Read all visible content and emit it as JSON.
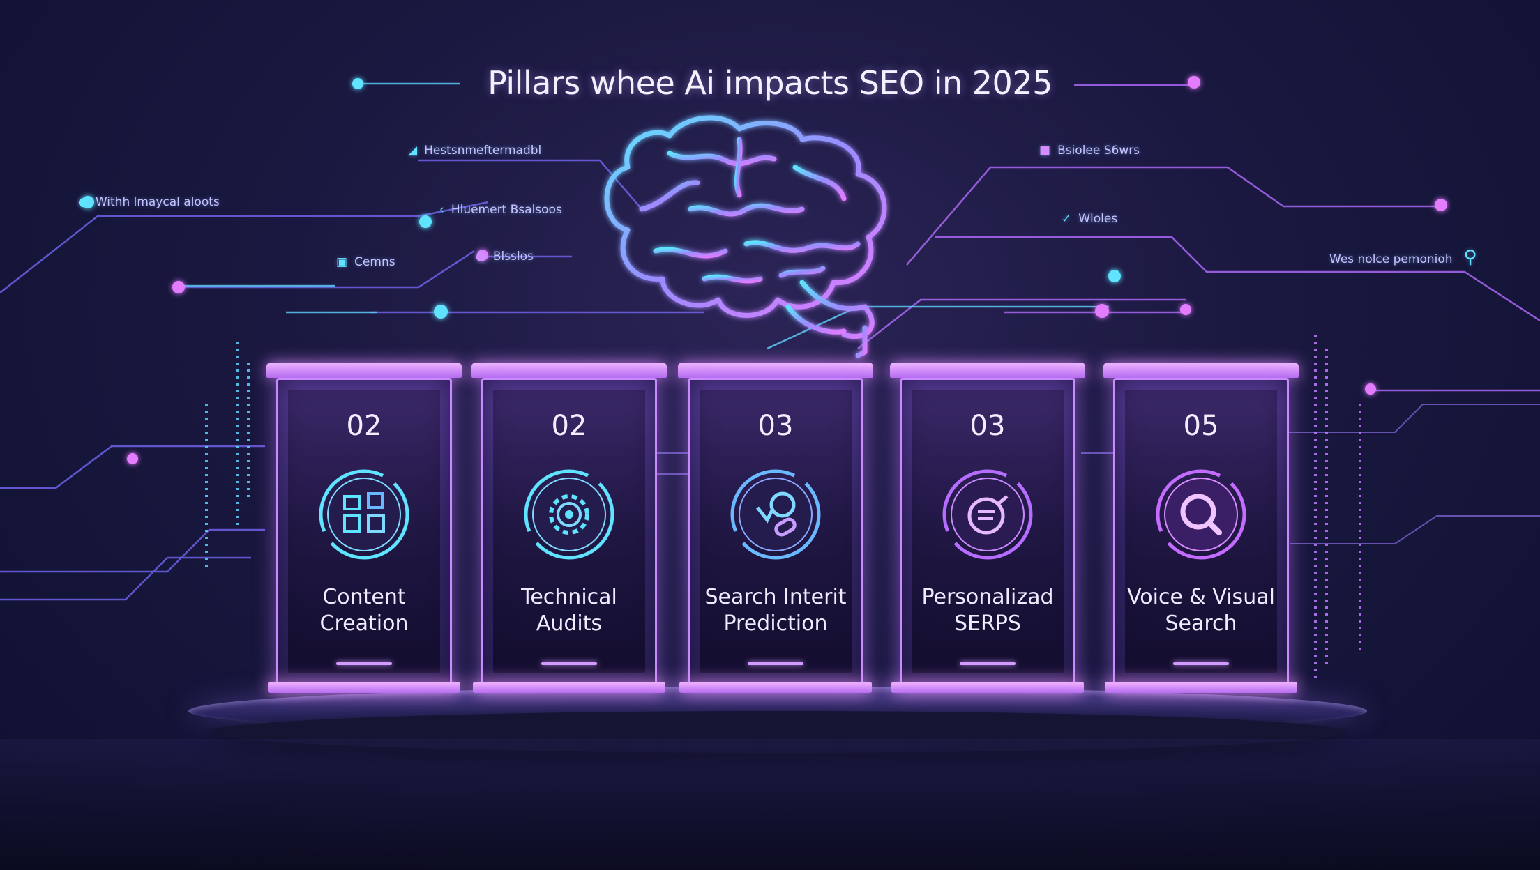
{
  "title": "Pillars whee Ai impacts SEO in 2025",
  "tags": [
    {
      "text": "Hestsnmeftermadbl",
      "icon": "pin-icon"
    },
    {
      "text": "Withh lmaycal aloots",
      "icon": "dot-icon"
    },
    {
      "text": "Hluemert Bsalsoos",
      "icon": "chevron-left-icon"
    },
    {
      "text": "Cemns",
      "icon": "frame-icon"
    },
    {
      "text": "Blsslos",
      "icon": "dot-icon"
    },
    {
      "text": "Bsiolee S6wrs",
      "icon": "square-icon"
    },
    {
      "text": "Wloles",
      "icon": "heart-check-icon"
    },
    {
      "text": "Wes nolce pemonioh",
      "icon": "search-icon"
    }
  ],
  "pillars": [
    {
      "number": "02",
      "label": "Content\nCreation",
      "icon": "content-creation-icon"
    },
    {
      "number": "02",
      "label": "Technical\nAudits",
      "icon": "technical-gear-icon"
    },
    {
      "number": "03",
      "label": "Search Interit\nPrediction",
      "icon": "search-intent-icon"
    },
    {
      "number": "03",
      "label": "Personalizad\nSERPS",
      "icon": "personalized-serp-icon"
    },
    {
      "number": "05",
      "label": "Voice & Visual\nSearch",
      "icon": "voice-visual-search-icon"
    }
  ],
  "colors": {
    "background": "#1a1840",
    "cyan": "#5fe3ff",
    "magenta": "#d58cff",
    "pillar_glow": "#c98aff"
  }
}
